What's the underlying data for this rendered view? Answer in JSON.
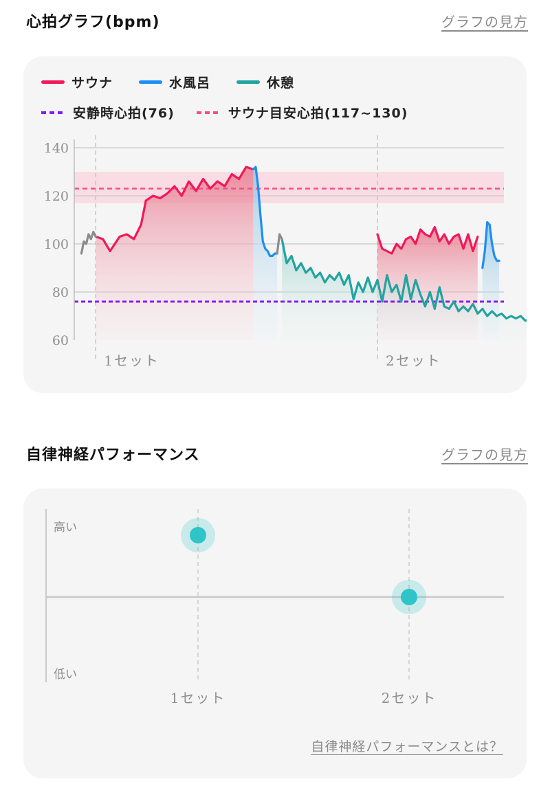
{
  "heart": {
    "title": "心拍グラフ(bpm)",
    "help_link": "グラフの見方",
    "legend": {
      "sauna": "サウナ",
      "cold_bath": "水風呂",
      "rest": "休憩",
      "resting_hr": "安静時心拍(76)",
      "sauna_target": "サウナ目安心拍(117~130)"
    },
    "colors": {
      "sauna": "#f0195a",
      "cold_bath": "#1e8ff0",
      "rest": "#22a3a0",
      "other": "#8c8c8c",
      "resting_line": "#8a1cf0",
      "target_line": "#f0508a",
      "target_band": "#f9d3de"
    }
  },
  "performance": {
    "title": "自律神経パフォーマンス",
    "help_link": "グラフの見方",
    "y_high": "高い",
    "y_low": "低い",
    "footer_link": "自律神経パフォーマンスとは？",
    "point_color": "#2ec4c8"
  },
  "chart_data": [
    {
      "type": "line",
      "title": "心拍グラフ(bpm)",
      "ylim": [
        60,
        140
      ],
      "yticks": [
        60,
        80,
        100,
        120,
        140
      ],
      "resting_hr": 76,
      "sauna_target": [
        117,
        130
      ],
      "target_line": 123,
      "set_labels": [
        "1セット",
        "2セット"
      ],
      "x_domain": [
        0,
        180
      ],
      "set_starts": [
        9,
        127
      ],
      "series": [
        {
          "name": "サウナ",
          "segments": [
            {
              "x": [
                9,
                12,
                15,
                17,
                19,
                22,
                25,
                28,
                30,
                33,
                36,
                39,
                42,
                45,
                48,
                51,
                54,
                57,
                60,
                63,
                66,
                69,
                72,
                75
              ],
              "y": [
                103,
                102,
                97,
                100,
                103,
                104,
                102,
                108,
                118,
                120,
                119,
                121,
                124,
                120,
                126,
                122,
                127,
                123,
                126,
                124,
                129,
                127,
                132,
                131
              ]
            },
            {
              "x": [
                127,
                129,
                131,
                133,
                135,
                137,
                139,
                141,
                143,
                145,
                147,
                149,
                151,
                153,
                155,
                157,
                159,
                161,
                163,
                165,
                167,
                169
              ],
              "y": [
                104,
                98,
                97,
                96,
                100,
                98,
                102,
                103,
                100,
                106,
                104,
                103,
                107,
                101,
                104,
                100,
                103,
                104,
                98,
                104,
                97,
                103
              ]
            }
          ]
        },
        {
          "name": "水風呂",
          "segments": [
            {
              "x": [
                75,
                76,
                77,
                78,
                79,
                80,
                81,
                82,
                83,
                84,
                85
              ],
              "y": [
                131,
                132,
                124,
                112,
                101,
                98,
                97,
                95,
                95,
                96,
                96
              ]
            },
            {
              "x": [
                171,
                172,
                173,
                174,
                175,
                176,
                177,
                178
              ],
              "y": [
                90,
                97,
                109,
                108,
                100,
                95,
                93,
                93
              ]
            }
          ]
        },
        {
          "name": "休憩",
          "segments": [
            {
              "x": [
                87,
                89,
                91,
                93,
                95,
                97,
                99,
                101,
                103,
                105,
                107,
                109,
                111,
                113,
                115,
                117,
                119,
                121,
                123,
                125,
                127,
                129,
                131,
                133,
                135,
                137,
                139,
                141,
                143,
                145,
                147,
                149,
                151,
                153,
                155,
                157,
                159,
                161,
                163,
                165,
                167,
                169,
                171,
                173,
                175,
                177,
                179,
                181,
                183,
                185,
                187,
                189,
                191,
                193,
                195
              ],
              "y": [
                102,
                92,
                95,
                89,
                92,
                88,
                90,
                86,
                88,
                84,
                87,
                85,
                88,
                83,
                87,
                77,
                84,
                80,
                86,
                80,
                85,
                76,
                87,
                80,
                83,
                76,
                87,
                77,
                85,
                79,
                74,
                80,
                73,
                82,
                74,
                73,
                76,
                72,
                74,
                72,
                75,
                71,
                73,
                70,
                72,
                70,
                71,
                69,
                70,
                69,
                70,
                68,
                69,
                67,
                68
              ]
            }
          ]
        },
        {
          "name": "other",
          "segments": [
            {
              "x": [
                3,
                4,
                5,
                6,
                7,
                8,
                9
              ],
              "y": [
                96,
                101,
                100,
                104,
                102,
                105,
                103
              ]
            },
            {
              "x": [
                85,
                86,
                87
              ],
              "y": [
                96,
                104,
                102
              ]
            }
          ]
        }
      ]
    },
    {
      "type": "scatter",
      "title": "自律神経パフォーマンス",
      "categories": [
        "1セット",
        "2セット"
      ],
      "y_labels": [
        "高い",
        "低い"
      ],
      "ylim": [
        -1,
        1
      ],
      "values": [
        0.9,
        0
      ]
    }
  ]
}
